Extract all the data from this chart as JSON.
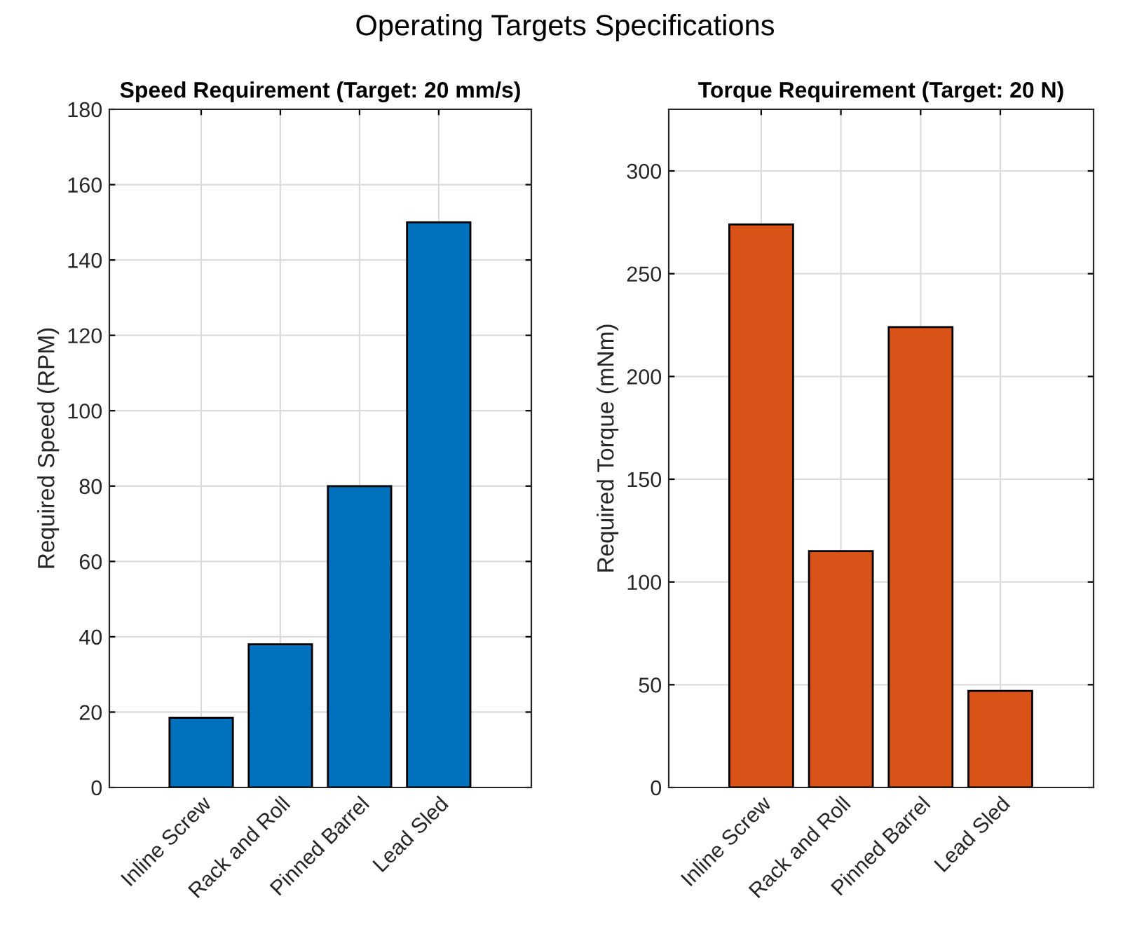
{
  "chart_data": [
    {
      "type": "bar",
      "annotations": [
        "Operating Targets Specifications"
      ],
      "title": "Speed Requirement (Target: 20 mm/s)",
      "ylabel": "Required Speed (RPM)",
      "categories": [
        "Inline Screw",
        "Rack and Roll",
        "Pinned Barrel",
        "Lead Sled"
      ],
      "values": [
        18.5,
        38,
        80,
        150
      ],
      "color": "#0072bd",
      "ylim": [
        0,
        180
      ],
      "yticks": [
        0,
        20,
        40,
        60,
        80,
        100,
        120,
        140,
        160,
        180
      ],
      "grid": true
    },
    {
      "type": "bar",
      "title": "Torque Requirement (Target: 20 N)",
      "ylabel": "Required Torque (mNm)",
      "categories": [
        "Inline Screw",
        "Rack and Roll",
        "Pinned Barrel",
        "Lead Sled"
      ],
      "values": [
        274,
        115,
        224,
        47
      ],
      "color": "#d95319",
      "ylim": [
        0,
        330
      ],
      "yticks": [
        0,
        50,
        100,
        150,
        200,
        250,
        300
      ],
      "grid": true
    }
  ]
}
